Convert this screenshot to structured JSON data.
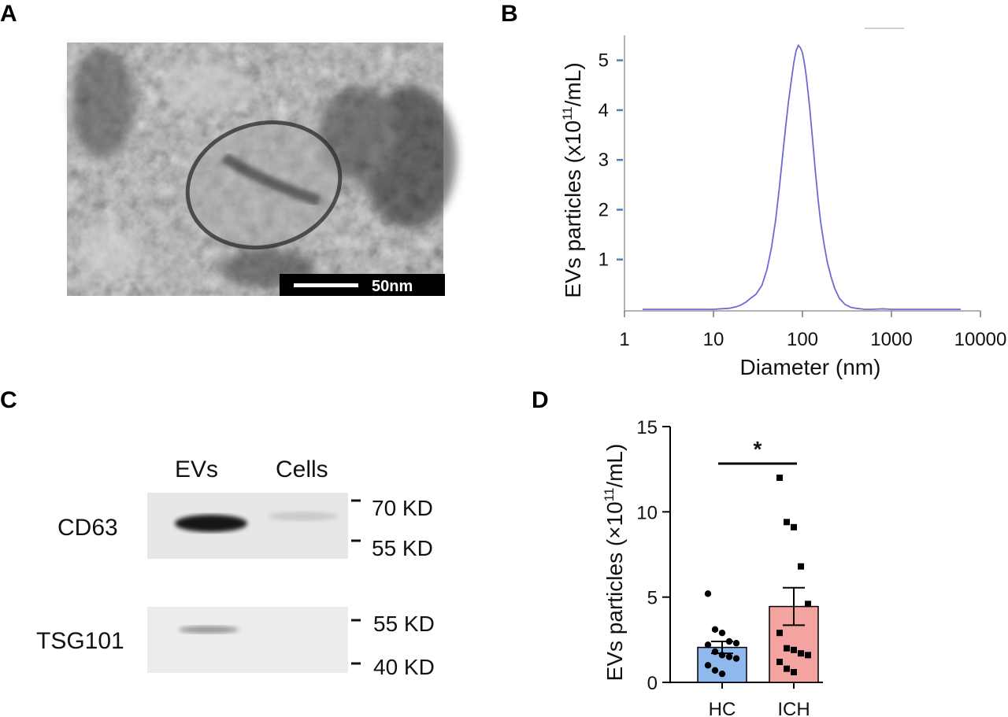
{
  "panels": {
    "a": "A",
    "b": "B",
    "c": "C",
    "d": "D"
  },
  "micrograph": {
    "scale_bar_label": "50nm"
  },
  "blot": {
    "lanes": [
      "EVs",
      "Cells"
    ],
    "rows": [
      {
        "protein": "CD63",
        "markers": [
          "70 KD",
          "55 KD"
        ],
        "band_intensity": [
          0.9,
          0.12
        ]
      },
      {
        "protein": "TSG101",
        "markers": [
          "55 KD",
          "40 KD"
        ],
        "band_intensity": [
          0.35,
          0.0
        ]
      }
    ]
  },
  "chart_data": [
    {
      "panel": "B",
      "type": "line",
      "xscale": "log",
      "xlabel": "Diameter (nm)",
      "ylabel": "EVs particles (x10^11/mL)",
      "xlim": [
        1,
        10000
      ],
      "ylim": [
        0,
        5.5
      ],
      "xticks": [
        "1",
        "10",
        "100",
        "1000",
        "10000"
      ],
      "yticks": [
        "1",
        "2",
        "3",
        "4",
        "5"
      ],
      "line_color": "#6b6bd0",
      "series": [
        {
          "x": [
            1.6,
            10,
            15,
            18,
            20,
            23,
            26,
            30,
            35,
            40,
            45,
            50,
            55,
            60,
            65,
            70,
            75,
            80,
            85,
            90,
            95,
            100,
            105,
            110,
            120,
            130,
            140,
            150,
            160,
            175,
            190,
            210,
            230,
            260,
            300,
            350,
            400,
            450,
            500,
            600,
            800,
            1000,
            2000,
            6000
          ],
          "y": [
            0.0,
            0.0,
            0.02,
            0.05,
            0.08,
            0.14,
            0.22,
            0.3,
            0.48,
            0.8,
            1.25,
            1.8,
            2.45,
            3.1,
            3.7,
            4.2,
            4.6,
            4.95,
            5.2,
            5.3,
            5.25,
            5.15,
            4.95,
            4.7,
            4.1,
            3.4,
            2.75,
            2.2,
            1.75,
            1.3,
            0.95,
            0.65,
            0.42,
            0.22,
            0.1,
            0.04,
            0.02,
            0.01,
            0.0,
            0.0,
            0.01,
            0.0,
            0.0,
            0.0
          ]
        }
      ]
    },
    {
      "panel": "D",
      "type": "bar",
      "ylabel": "EVs particles (×10^11/mL)",
      "ylim": [
        0,
        15
      ],
      "yticks": [
        "0",
        "5",
        "10",
        "15"
      ],
      "categories": [
        "HC",
        "ICH"
      ],
      "values": [
        2.05,
        4.45
      ],
      "sem": [
        0.35,
        1.1
      ],
      "colors": [
        "#8fb8ec",
        "#f3a3a0"
      ],
      "points": [
        [
          5.2,
          3.1,
          2.9,
          2.4,
          2.3,
          2.2,
          1.8,
          1.6,
          1.5,
          1.4,
          1.0,
          0.7,
          0.5
        ],
        [
          12.0,
          9.4,
          9.1,
          6.8,
          4.6,
          2.9,
          2.0,
          1.9,
          1.7,
          1.6,
          1.2,
          0.8,
          0.6
        ]
      ],
      "significance": "*"
    }
  ]
}
